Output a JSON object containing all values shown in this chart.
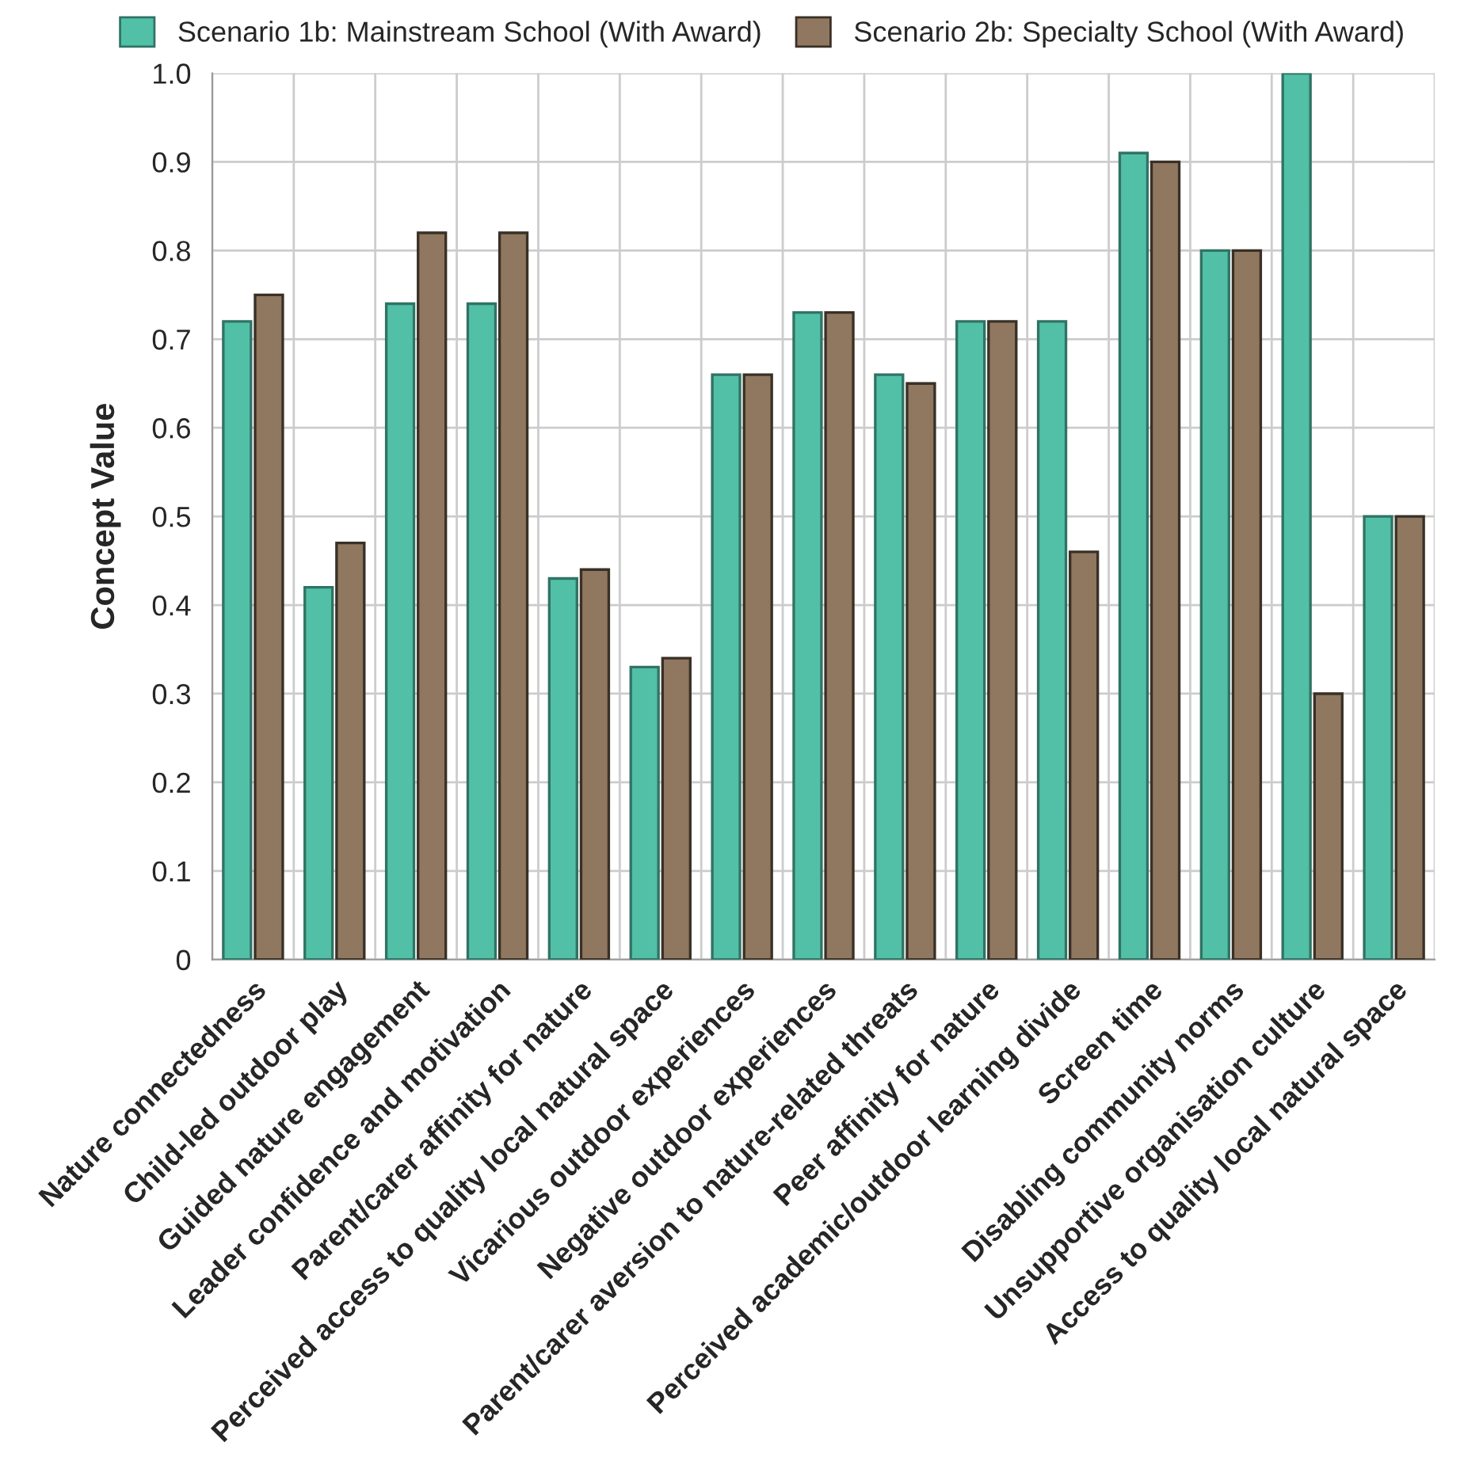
{
  "chart_data": {
    "type": "bar",
    "ylabel": "Concept Value",
    "categories": [
      "Nature connectedness",
      "Child-led outdoor play",
      "Guided nature engagement",
      "Leader confidence and motivation",
      "Parent/carer affinity for nature",
      "Perceived access to quality local natural space",
      "Vicarious outdoor experiences",
      "Negative outdoor experiences",
      "Parent/carer aversion to nature-related threats",
      "Peer affinity for nature",
      "Perceived academic/outdoor learning divide",
      "Screen time",
      "Disabling community norms",
      "Unsupportive organisation culture",
      "Access to quality local natural space"
    ],
    "series": [
      {
        "name": "Scenario 1b: Mainstream School (With Award)",
        "color": "#52c0a6",
        "values": [
          0.72,
          0.42,
          0.74,
          0.74,
          0.43,
          0.33,
          0.66,
          0.73,
          0.66,
          0.72,
          0.72,
          0.91,
          0.8,
          1.0,
          0.5
        ]
      },
      {
        "name": "Scenario 2b: Specialty School (With Award)",
        "color": "#8f7760",
        "values": [
          0.75,
          0.47,
          0.82,
          0.82,
          0.44,
          0.34,
          0.66,
          0.73,
          0.65,
          0.72,
          0.46,
          0.9,
          0.8,
          0.3,
          0.5
        ]
      }
    ],
    "ylim": [
      0,
      1.0
    ],
    "yticks": [
      0,
      0.1,
      0.2,
      0.3,
      0.4,
      0.5,
      0.6,
      0.7,
      0.8,
      0.9,
      {
        "value": 1,
        "label": "1.0"
      }
    ],
    "grid": true,
    "legend": "top"
  }
}
